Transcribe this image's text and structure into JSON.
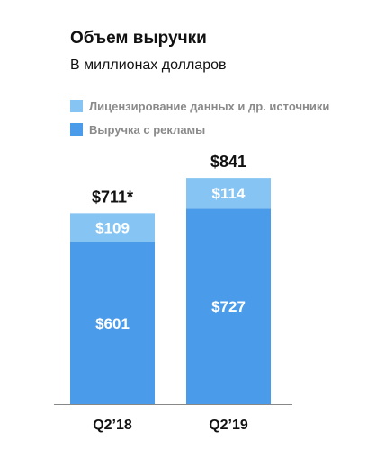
{
  "title": "Объем выручки",
  "subtitle": "В миллионах долларов",
  "colors": {
    "ads": "#4a9be9",
    "licensing": "#86c4f4",
    "axis": "#888888"
  },
  "chart_data": {
    "type": "bar",
    "stacked": true,
    "categories": [
      "Q2’18",
      "Q2’19"
    ],
    "series": [
      {
        "name": "Выручка с рекламы",
        "values": [
          601,
          727
        ],
        "value_labels": [
          "$601",
          "$727"
        ]
      },
      {
        "name": "Лицензирование данных и др. источники",
        "values": [
          109,
          114
        ],
        "value_labels": [
          "$109",
          "$114"
        ]
      }
    ],
    "totals": [
      711,
      841
    ],
    "total_labels": [
      "$711*",
      "$841"
    ],
    "legend_position": "top-left",
    "grid": false
  }
}
